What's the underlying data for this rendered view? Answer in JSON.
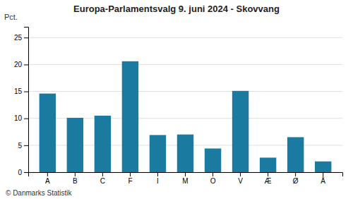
{
  "chart_data": {
    "type": "bar",
    "title": "Europa-Parlamentsvalg 9. juni 2024 - Skovvang",
    "categories": [
      "A",
      "B",
      "C",
      "F",
      "I",
      "M",
      "O",
      "V",
      "Æ",
      "Ø",
      "Å"
    ],
    "values": [
      14.6,
      10.1,
      10.5,
      20.6,
      6.9,
      7.0,
      4.4,
      15.1,
      2.7,
      6.5,
      2.0
    ],
    "color": "#1b7a9f",
    "ylabel": "Pct.",
    "ylim": [
      0,
      27
    ],
    "yticks": [
      0,
      5,
      10,
      15,
      20,
      25
    ],
    "grid": true,
    "footer": "© Danmarks Statistik"
  }
}
